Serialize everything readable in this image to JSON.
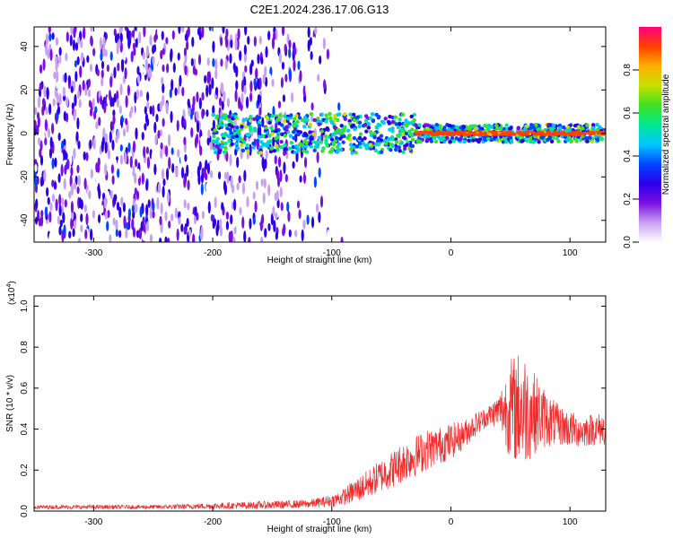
{
  "title": "C2E1.2024.236.17.06.G13",
  "chart_data": [
    {
      "type": "heatmap",
      "xlabel": "Height of straight line (km)",
      "ylabel": "Frequency (Hz)",
      "xlim": [
        -350,
        130
      ],
      "ylim": [
        -50,
        49
      ],
      "xticks": [
        -300,
        -200,
        -100,
        0,
        100
      ],
      "xtick_labels": [
        "-300",
        "-200",
        "-100",
        "0",
        "100"
      ],
      "yticks": [
        -40,
        -20,
        0,
        20,
        40
      ],
      "ytick_labels": [
        "-40",
        "-20",
        "0",
        "20",
        "40"
      ],
      "grid": false,
      "colorbar": {
        "label": "Normalized spectral amplitude",
        "range": [
          0.0,
          1.0
        ],
        "ticks": [
          0.0,
          0.2,
          0.4,
          0.6,
          0.8
        ],
        "tick_labels": [
          "0.0",
          "0.2",
          "0.4",
          "0.6",
          "0.8"
        ],
        "colors": [
          "#ffffff",
          "#c8a0f0",
          "#7a10e0",
          "#2a00e8",
          "#0048ff",
          "#00c8ff",
          "#00e890",
          "#40e020",
          "#c8e000",
          "#ffb000",
          "#ff4000",
          "#ff0080"
        ]
      },
      "regions": [
        {
          "x_range": [
            -350,
            -100
          ],
          "description_level": "broadband noise",
          "amplitude": 0.15
        },
        {
          "x_range": [
            -200,
            130
          ],
          "frequency_center": 0,
          "amplitude": 0.5
        },
        {
          "x_range": [
            -30,
            130
          ],
          "frequency_center": 0,
          "amplitude": 0.9
        }
      ]
    },
    {
      "type": "line",
      "xlabel": "Height of straight line (km)",
      "ylabel": "SNR (10 * v/v)",
      "y_scale_label": "(x10",
      "y_scale_exponent": "4",
      "y_scale_close": ")",
      "xlim": [
        -350,
        130
      ],
      "ylim": [
        0,
        1.05
      ],
      "xticks": [
        -300,
        -200,
        -100,
        0,
        100
      ],
      "xtick_labels": [
        "-300",
        "-200",
        "-100",
        "0",
        "100"
      ],
      "yticks": [
        0.0,
        0.2,
        0.4,
        0.6,
        0.8,
        1.0
      ],
      "ytick_labels": [
        "0.0",
        "0.2",
        "0.4",
        "0.6",
        "0.8",
        "1.0"
      ],
      "grid": false,
      "series": [
        {
          "color": "#ee2b2b",
          "x": [
            -350,
            -300,
            -250,
            -200,
            -150,
            -120,
            -100,
            -90,
            -80,
            -70,
            -60,
            -50,
            -40,
            -30,
            -20,
            -10,
            0,
            10,
            20,
            30,
            40,
            50,
            60,
            70,
            80,
            90,
            100,
            110,
            120,
            130
          ],
          "values": [
            0.02,
            0.02,
            0.02,
            0.025,
            0.03,
            0.035,
            0.05,
            0.07,
            0.1,
            0.13,
            0.17,
            0.2,
            0.24,
            0.27,
            0.3,
            0.32,
            0.34,
            0.37,
            0.42,
            0.46,
            0.49,
            0.5,
            0.5,
            0.48,
            0.45,
            0.42,
            0.4,
            0.39,
            0.4,
            0.4
          ],
          "spread": [
            0.01,
            0.01,
            0.01,
            0.015,
            0.02,
            0.02,
            0.03,
            0.04,
            0.06,
            0.07,
            0.08,
            0.09,
            0.1,
            0.1,
            0.1,
            0.09,
            0.09,
            0.07,
            0.06,
            0.05,
            0.08,
            0.25,
            0.3,
            0.2,
            0.14,
            0.1,
            0.09,
            0.08,
            0.08,
            0.08
          ]
        }
      ]
    }
  ]
}
